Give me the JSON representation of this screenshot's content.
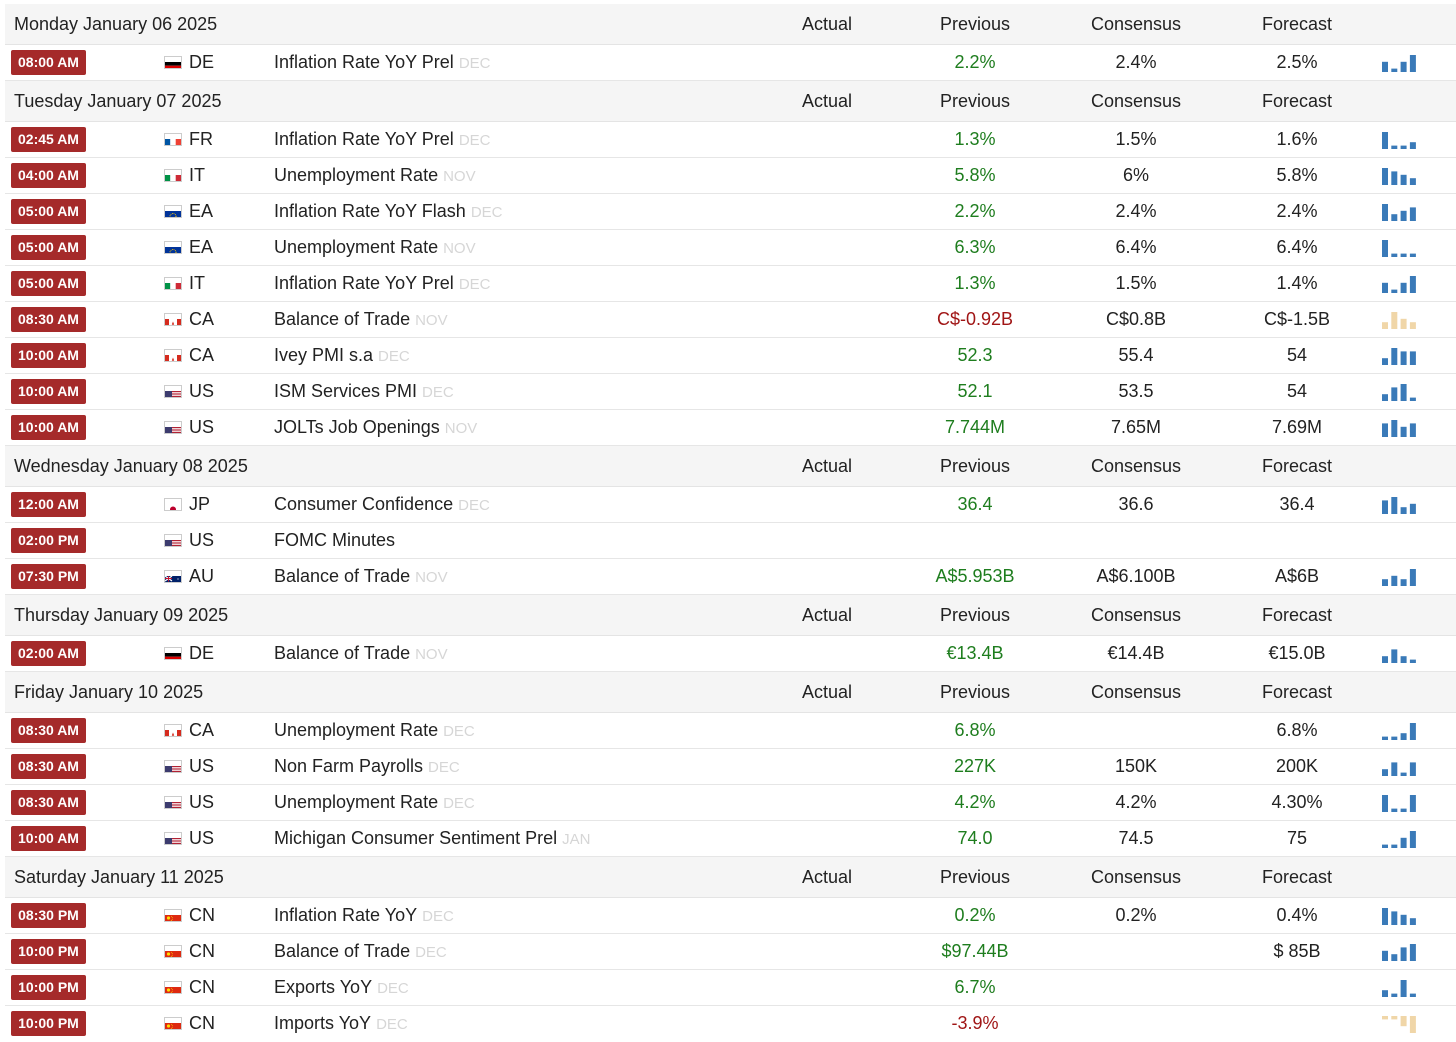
{
  "columns": {
    "actual": "Actual",
    "previous": "Previous",
    "consensus": "Consensus",
    "forecast": "Forecast"
  },
  "colors": {
    "time_badge": "#a52a2a",
    "positive": "#1e7d1e",
    "negative": "#a01515",
    "spark_blue": "#3a7ab8",
    "spark_tan": "#f0d6a8",
    "period_gray": "#d6d6d6"
  },
  "days": [
    {
      "title": "Monday January 06 2025",
      "events": [
        {
          "time": "08:00 AM",
          "flag": "de",
          "country": "DE",
          "name": "Inflation Rate YoY Prel",
          "period": "DEC",
          "actual": "",
          "previous": "2.2%",
          "previous_tone": "green",
          "consensus": "2.4%",
          "forecast": "2.5%",
          "spark": [
            3,
            1,
            3,
            5
          ],
          "spark_color": "blue"
        }
      ]
    },
    {
      "title": "Tuesday January 07 2025",
      "events": [
        {
          "time": "02:45 AM",
          "flag": "fr",
          "country": "FR",
          "name": "Inflation Rate YoY Prel",
          "period": "DEC",
          "actual": "",
          "previous": "1.3%",
          "previous_tone": "green",
          "consensus": "1.5%",
          "forecast": "1.6%",
          "spark": [
            5,
            1,
            1,
            2
          ],
          "spark_color": "blue"
        },
        {
          "time": "04:00 AM",
          "flag": "it",
          "country": "IT",
          "name": "Unemployment Rate",
          "period": "NOV",
          "actual": "",
          "previous": "5.8%",
          "previous_tone": "green",
          "consensus": "6%",
          "forecast": "5.8%",
          "spark": [
            5,
            4,
            3,
            2
          ],
          "spark_color": "blue"
        },
        {
          "time": "05:00 AM",
          "flag": "eu",
          "country": "EA",
          "name": "Inflation Rate YoY Flash",
          "period": "DEC",
          "actual": "",
          "previous": "2.2%",
          "previous_tone": "green",
          "consensus": "2.4%",
          "forecast": "2.4%",
          "spark": [
            5,
            2,
            3,
            4
          ],
          "spark_color": "blue"
        },
        {
          "time": "05:00 AM",
          "flag": "eu",
          "country": "EA",
          "name": "Unemployment Rate",
          "period": "NOV",
          "actual": "",
          "previous": "6.3%",
          "previous_tone": "green",
          "consensus": "6.4%",
          "forecast": "6.4%",
          "spark": [
            5,
            1,
            1,
            1
          ],
          "spark_color": "blue"
        },
        {
          "time": "05:00 AM",
          "flag": "it",
          "country": "IT",
          "name": "Inflation Rate YoY Prel",
          "period": "DEC",
          "actual": "",
          "previous": "1.3%",
          "previous_tone": "green",
          "consensus": "1.5%",
          "forecast": "1.4%",
          "spark": [
            3,
            1,
            3,
            5
          ],
          "spark_color": "blue"
        },
        {
          "time": "08:30 AM",
          "flag": "ca",
          "country": "CA",
          "name": "Balance of Trade",
          "period": "NOV",
          "actual": "",
          "previous": "C$-0.92B",
          "previous_tone": "red",
          "consensus": "C$0.8B",
          "forecast": "C$-1.5B",
          "spark": [
            2,
            5,
            3,
            2
          ],
          "spark_color": "tan"
        },
        {
          "time": "10:00 AM",
          "flag": "ca",
          "country": "CA",
          "name": "Ivey PMI s.a",
          "period": "DEC",
          "actual": "",
          "previous": "52.3",
          "previous_tone": "green",
          "consensus": "55.4",
          "forecast": "54",
          "spark": [
            2,
            5,
            4,
            4
          ],
          "spark_color": "blue"
        },
        {
          "time": "10:00 AM",
          "flag": "us",
          "country": "US",
          "name": "ISM Services PMI",
          "period": "DEC",
          "actual": "",
          "previous": "52.1",
          "previous_tone": "green",
          "consensus": "53.5",
          "forecast": "54",
          "spark": [
            2,
            4,
            5,
            1
          ],
          "spark_color": "blue"
        },
        {
          "time": "10:00 AM",
          "flag": "us",
          "country": "US",
          "name": "JOLTs Job Openings",
          "period": "NOV",
          "actual": "",
          "previous": "7.744M",
          "previous_tone": "green",
          "consensus": "7.65M",
          "forecast": "7.69M",
          "spark": [
            4,
            5,
            3,
            4
          ],
          "spark_color": "blue"
        }
      ]
    },
    {
      "title": "Wednesday January 08 2025",
      "events": [
        {
          "time": "12:00 AM",
          "flag": "jp",
          "country": "JP",
          "name": "Consumer Confidence",
          "period": "DEC",
          "actual": "",
          "previous": "36.4",
          "previous_tone": "green",
          "consensus": "36.6",
          "forecast": "36.4",
          "spark": [
            4,
            5,
            2,
            3
          ],
          "spark_color": "blue"
        },
        {
          "time": "02:00 PM",
          "flag": "us",
          "country": "US",
          "name": "FOMC Minutes",
          "period": "",
          "actual": "",
          "previous": "",
          "previous_tone": "green",
          "consensus": "",
          "forecast": "",
          "spark": [],
          "spark_color": "blue"
        },
        {
          "time": "07:30 PM",
          "flag": "au",
          "country": "AU",
          "name": "Balance of Trade",
          "period": "NOV",
          "actual": "",
          "previous": "A$5.953B",
          "previous_tone": "green",
          "consensus": "A$6.100B",
          "forecast": "A$6B",
          "spark": [
            2,
            3,
            2,
            5
          ],
          "spark_color": "blue"
        }
      ]
    },
    {
      "title": "Thursday January 09 2025",
      "events": [
        {
          "time": "02:00 AM",
          "flag": "de",
          "country": "DE",
          "name": "Balance of Trade",
          "period": "NOV",
          "actual": "",
          "previous": "€13.4B",
          "previous_tone": "green",
          "consensus": "€14.4B",
          "forecast": "€15.0B",
          "spark": [
            2,
            4,
            2,
            1
          ],
          "spark_color": "blue"
        }
      ]
    },
    {
      "title": "Friday January 10 2025",
      "events": [
        {
          "time": "08:30 AM",
          "flag": "ca",
          "country": "CA",
          "name": "Unemployment Rate",
          "period": "DEC",
          "actual": "",
          "previous": "6.8%",
          "previous_tone": "green",
          "consensus": "",
          "forecast": "6.8%",
          "spark": [
            1,
            1,
            2,
            5
          ],
          "spark_color": "blue"
        },
        {
          "time": "08:30 AM",
          "flag": "us",
          "country": "US",
          "name": "Non Farm Payrolls",
          "period": "DEC",
          "actual": "",
          "previous": "227K",
          "previous_tone": "green",
          "consensus": "150K",
          "forecast": "200K",
          "spark": [
            2,
            4,
            1,
            4
          ],
          "spark_color": "blue"
        },
        {
          "time": "08:30 AM",
          "flag": "us",
          "country": "US",
          "name": "Unemployment Rate",
          "period": "DEC",
          "actual": "",
          "previous": "4.2%",
          "previous_tone": "green",
          "consensus": "4.2%",
          "forecast": "4.30%",
          "spark": [
            5,
            1,
            1,
            5
          ],
          "spark_color": "blue"
        },
        {
          "time": "10:00 AM",
          "flag": "us",
          "country": "US",
          "name": "Michigan Consumer Sentiment Prel",
          "period": "JAN",
          "actual": "",
          "previous": "74.0",
          "previous_tone": "green",
          "consensus": "74.5",
          "forecast": "75",
          "spark": [
            1,
            1,
            3,
            5
          ],
          "spark_color": "blue"
        }
      ]
    },
    {
      "title": "Saturday January 11 2025",
      "events": [
        {
          "time": "08:30 PM",
          "flag": "cn",
          "country": "CN",
          "name": "Inflation Rate YoY",
          "period": "DEC",
          "actual": "",
          "previous": "0.2%",
          "previous_tone": "green",
          "consensus": "0.2%",
          "forecast": "0.4%",
          "spark": [
            5,
            4,
            3,
            2
          ],
          "spark_color": "blue"
        },
        {
          "time": "10:00 PM",
          "flag": "cn",
          "country": "CN",
          "name": "Balance of Trade",
          "period": "DEC",
          "actual": "",
          "previous": "$97.44B",
          "previous_tone": "green",
          "consensus": "",
          "forecast": "$ 85B",
          "spark": [
            3,
            2,
            4,
            5
          ],
          "spark_color": "blue"
        },
        {
          "time": "10:00 PM",
          "flag": "cn",
          "country": "CN",
          "name": "Exports YoY",
          "period": "DEC",
          "actual": "",
          "previous": "6.7%",
          "previous_tone": "green",
          "consensus": "",
          "forecast": "",
          "spark": [
            2,
            1,
            5,
            1
          ],
          "spark_color": "blue"
        },
        {
          "time": "10:00 PM",
          "flag": "cn",
          "country": "CN",
          "name": "Imports YoY",
          "period": "DEC",
          "actual": "",
          "previous": "-3.9%",
          "previous_tone": "red",
          "consensus": "",
          "forecast": "",
          "spark": [
            -1,
            -1,
            -3,
            -5
          ],
          "spark_color": "tan"
        }
      ]
    }
  ]
}
